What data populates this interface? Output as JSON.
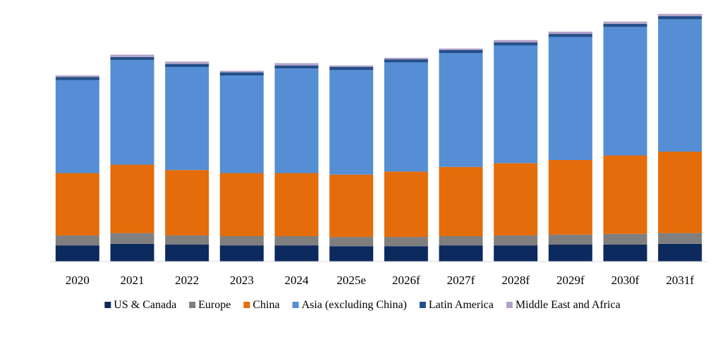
{
  "chart_data": {
    "type": "bar",
    "stacked": true,
    "title": "",
    "xlabel": "",
    "ylabel": "",
    "categories": [
      "2020",
      "2021",
      "2022",
      "2023",
      "2024",
      "2025e",
      "2026f",
      "2027f",
      "2028f",
      "2029f",
      "2030f",
      "2031f"
    ],
    "ylim": [
      0,
      330
    ],
    "grid": false,
    "legend": "bottom",
    "series": [
      {
        "name": "US & Canada",
        "color": "#0d2a5e",
        "values": [
          21,
          23,
          22,
          21,
          21,
          20,
          20,
          21,
          21,
          22,
          22,
          23
        ]
      },
      {
        "name": "Europe",
        "color": "#7f7f7f",
        "values": [
          13,
          14,
          12,
          12,
          12,
          12,
          12,
          12,
          13,
          13,
          14,
          14
        ]
      },
      {
        "name": "China",
        "color": "#e46c0a",
        "values": [
          81,
          89,
          85,
          82,
          82,
          81,
          85,
          90,
          94,
          97,
          102,
          106
        ]
      },
      {
        "name": "Asia (excluding China)",
        "color": "#558ed5",
        "values": [
          121,
          136,
          134,
          127,
          136,
          136,
          142,
          148,
          153,
          160,
          167,
          172
        ]
      },
      {
        "name": "Latin America",
        "color": "#254f8a",
        "values": [
          4,
          4,
          4,
          4,
          4,
          4,
          4,
          4,
          4,
          4,
          4,
          4
        ]
      },
      {
        "name": "Middle East and Africa",
        "color": "#b3a2c7",
        "values": [
          2,
          3,
          3,
          2,
          3,
          2,
          2,
          2,
          3,
          3,
          3,
          3
        ]
      }
    ]
  }
}
